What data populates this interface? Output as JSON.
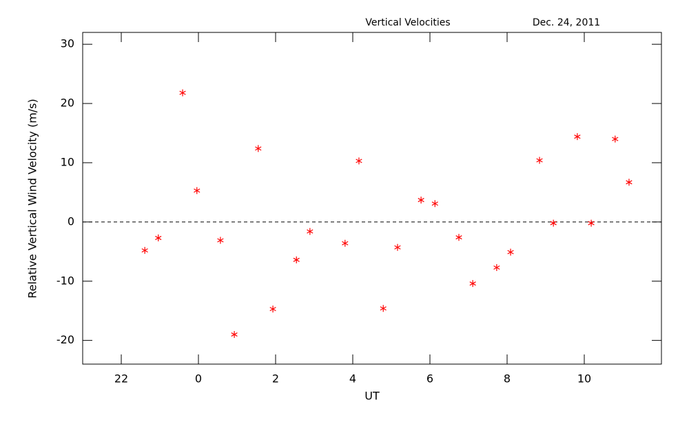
{
  "chart_data": {
    "type": "scatter",
    "title": "Vertical Velocities",
    "subtitle": "Dec. 24, 2011",
    "xlabel": "UT",
    "ylabel": "Relative Vertical Wind Velocity (m/s)",
    "series": [
      {
        "color": "#ff0000",
        "x": [
          -1.39,
          -1.04,
          -0.41,
          -0.04,
          0.57,
          0.93,
          1.55,
          1.93,
          2.54,
          2.89,
          3.8,
          4.16,
          4.79,
          5.16,
          5.77,
          6.13,
          6.75,
          7.11,
          7.73,
          8.09,
          8.84,
          9.2,
          9.82,
          10.18,
          10.8,
          11.16
        ],
        "values": [
          -4.8,
          -2.7,
          21.8,
          5.3,
          -3.1,
          -19.0,
          12.4,
          -14.7,
          -6.4,
          -1.6,
          -3.6,
          10.3,
          -14.6,
          -4.3,
          3.7,
          3.1,
          -2.6,
          -10.4,
          -7.7,
          -5.1,
          10.4,
          -0.2,
          14.4,
          -0.2,
          14.0,
          6.7
        ]
      }
    ],
    "reference_line": 0,
    "xlim": [
      -3,
      12
    ],
    "xticks": [
      {
        "value": -2,
        "label": "22"
      },
      0,
      2,
      4,
      6,
      8,
      10
    ],
    "ylim": [
      -24,
      32
    ],
    "yticks": [
      -20,
      -10,
      0,
      10,
      20,
      30
    ]
  }
}
